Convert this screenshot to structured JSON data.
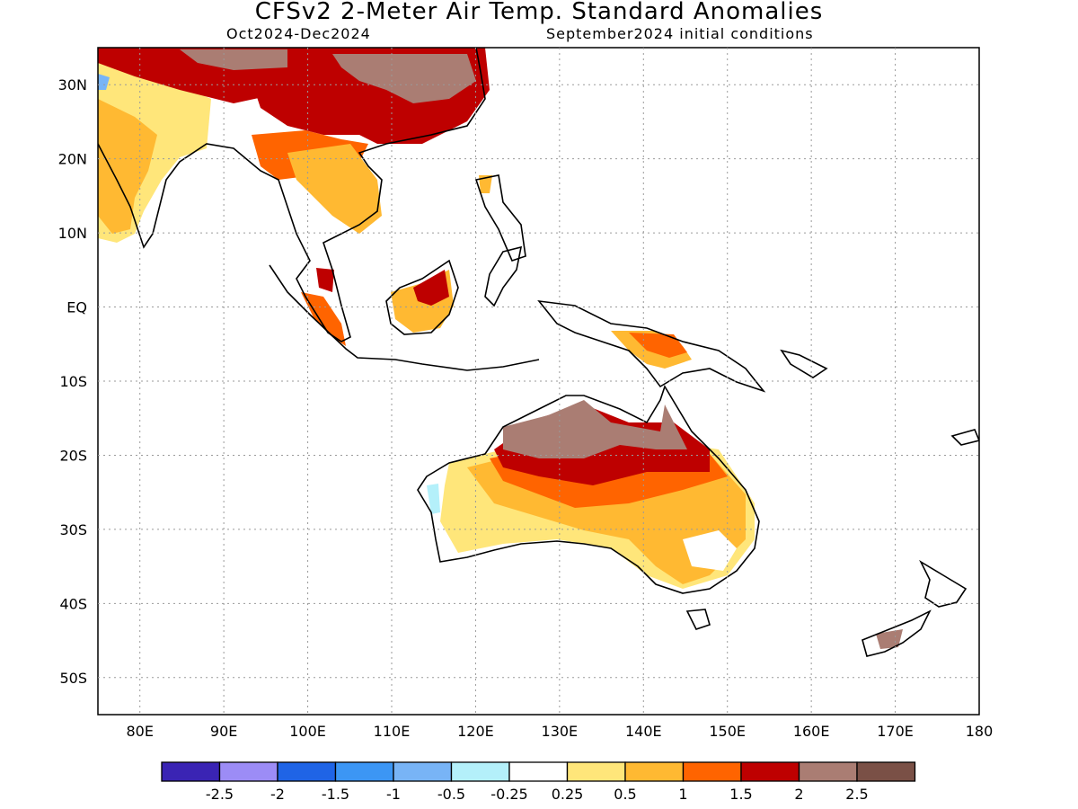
{
  "title": "CFSv2 2-Meter Air Temp. Standard Anomalies",
  "period": "Oct2024-Dec2024",
  "initial_conditions": "September2024 initial conditions",
  "map": {
    "lon_labels": [
      "80E",
      "90E",
      "100E",
      "110E",
      "120E",
      "130E",
      "140E",
      "150E",
      "160E",
      "170E",
      "180"
    ],
    "lat_labels": [
      "30N",
      "20N",
      "10N",
      "EQ",
      "10S",
      "20S",
      "30S",
      "40S",
      "50S"
    ],
    "lon_range": [
      75,
      180
    ],
    "lat_range": [
      -55,
      35
    ],
    "grid": "dotted"
  },
  "legend": {
    "colors": [
      "#3a24b4",
      "#9c8cf6",
      "#1f64e6",
      "#3c96f4",
      "#78b4f6",
      "#b4f0fa",
      "#ffffff",
      "#ffe67a",
      "#ffb932",
      "#ff6400",
      "#be0000",
      "#aa7d73",
      "#7a5046"
    ],
    "labels": [
      "-2.5",
      "-2",
      "-1.5",
      "-1",
      "-0.5",
      "-0.25",
      "0.25",
      "0.5",
      "1",
      "1.5",
      "2",
      "2.5"
    ]
  }
}
